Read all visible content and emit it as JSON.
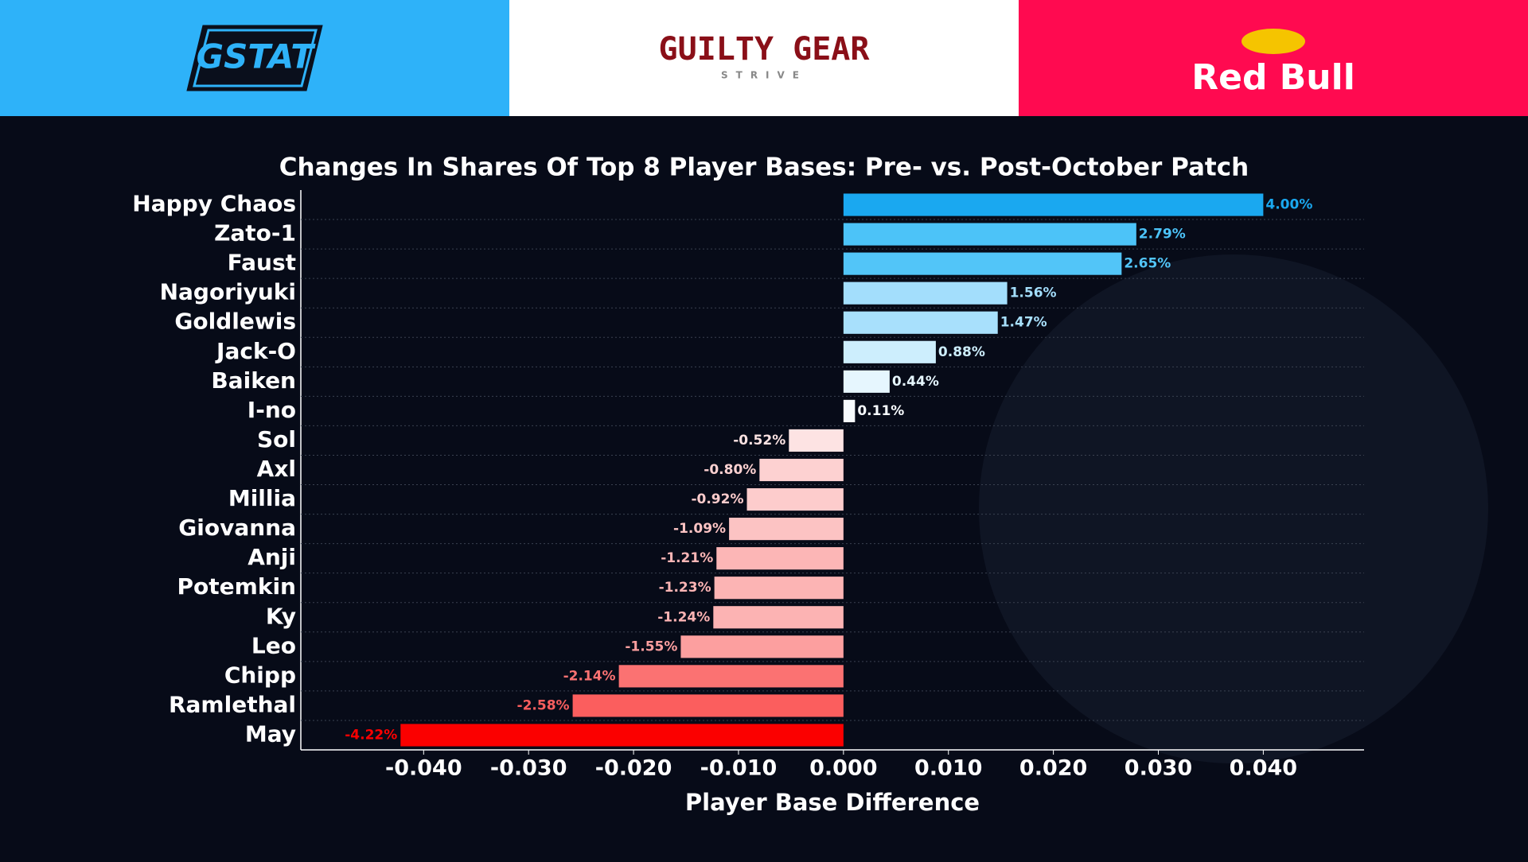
{
  "header": {
    "left_logo": "PGSTATS",
    "center_logo": "GUILTY GEAR",
    "center_sub": "STRIVE",
    "right_logo": "Red Bull"
  },
  "chart_data": {
    "type": "barh",
    "title": "Changes In Shares Of Top 8 Player Bases: Pre- vs. Post-October Patch",
    "x_label": "Player Base Difference",
    "categories": [
      "Happy Chaos",
      "Zato-1",
      "Faust",
      "Nagoriyuki",
      "Goldlewis",
      "Jack-O",
      "Baiken",
      "I-no",
      "Sol",
      "Axl",
      "Millia",
      "Giovanna",
      "Anji",
      "Potemkin",
      "Ky",
      "Leo",
      "Chipp",
      "Ramlethal",
      "May"
    ],
    "values": [
      0.04,
      0.0279,
      0.0265,
      0.0156,
      0.0147,
      0.0088,
      0.0044,
      0.0011,
      -0.0052,
      -0.008,
      -0.0092,
      -0.0109,
      -0.0121,
      -0.0123,
      -0.0124,
      -0.0155,
      -0.0214,
      -0.0258,
      -0.0422
    ],
    "value_labels": [
      "4.00%",
      "2.79%",
      "2.65%",
      "1.56%",
      "1.47%",
      "0.88%",
      "0.44%",
      "0.11%",
      "-0.52%",
      "-0.80%",
      "-0.92%",
      "-1.09%",
      "-1.21%",
      "-1.23%",
      "-1.24%",
      "-1.55%",
      "-2.14%",
      "-2.58%",
      "-4.22%"
    ],
    "colors": [
      "#1aa8f0",
      "#4cc3f8",
      "#52c5f8",
      "#a3defc",
      "#a8e0fc",
      "#cdeefd",
      "#e6f6fe",
      "#f7fbfe",
      "#fde3e3",
      "#fdd1d1",
      "#fdcccc",
      "#fcc3c3",
      "#fcb6b6",
      "#fcb4b4",
      "#fcb3b3",
      "#fc9f9f",
      "#fb7272",
      "#fb5e5e",
      "#fb0000"
    ],
    "xlim": [
      -0.0517,
      0.0496
    ],
    "xticks": [
      {
        "value": -0.04,
        "label": "-0.040"
      },
      {
        "value": -0.03,
        "label": "-0.030"
      },
      {
        "value": -0.02,
        "label": "-0.020"
      },
      {
        "value": -0.01,
        "label": "-0.010"
      },
      {
        "value": 0,
        "label": "0.000"
      },
      {
        "value": 0.01,
        "label": "0.010"
      },
      {
        "value": 0.02,
        "label": "0.020"
      },
      {
        "value": 0.03,
        "label": "0.030"
      },
      {
        "value": 0.04,
        "label": "0.040"
      }
    ]
  }
}
